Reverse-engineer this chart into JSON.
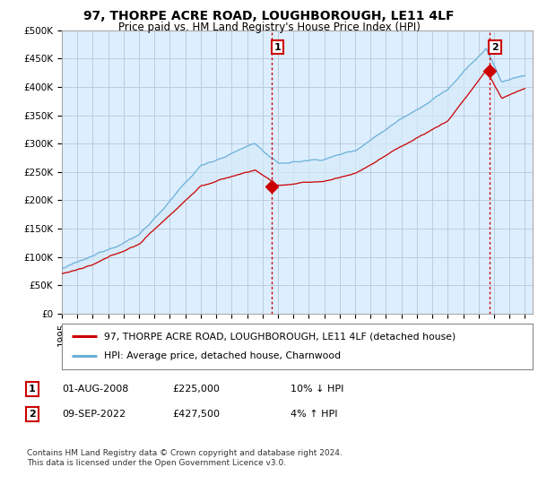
{
  "title": "97, THORPE ACRE ROAD, LOUGHBOROUGH, LE11 4LF",
  "subtitle": "Price paid vs. HM Land Registry's House Price Index (HPI)",
  "ylabel_ticks": [
    "£0",
    "£50K",
    "£100K",
    "£150K",
    "£200K",
    "£250K",
    "£300K",
    "£350K",
    "£400K",
    "£450K",
    "£500K"
  ],
  "ytick_values": [
    0,
    50000,
    100000,
    150000,
    200000,
    250000,
    300000,
    350000,
    400000,
    450000,
    500000
  ],
  "ylim": [
    0,
    500000
  ],
  "xlim_start": 1995.0,
  "xlim_end": 2025.5,
  "hpi_color": "#6ab0d8",
  "hpi_fill_color": "#d6eaf8",
  "price_color": "#cc0000",
  "vline_color": "#cc0000",
  "sale1_x": 2008.583,
  "sale1_y": 225000,
  "sale2_x": 2022.69,
  "sale2_y": 427500,
  "legend_property": "97, THORPE ACRE ROAD, LOUGHBOROUGH, LE11 4LF (detached house)",
  "legend_hpi": "HPI: Average price, detached house, Charnwood",
  "note1_date": "01-AUG-2008",
  "note1_price": "£225,000",
  "note1_hpi": "10% ↓ HPI",
  "note2_date": "09-SEP-2022",
  "note2_price": "£427,500",
  "note2_hpi": "4% ↑ HPI",
  "footer": "Contains HM Land Registry data © Crown copyright and database right 2024.\nThis data is licensed under the Open Government Licence v3.0.",
  "background_color": "#ffffff",
  "chart_bg_color": "#ddeeff",
  "grid_color": "#bbccdd",
  "xtick_years": [
    1995,
    1996,
    1997,
    1998,
    1999,
    2000,
    2001,
    2002,
    2003,
    2004,
    2005,
    2006,
    2007,
    2008,
    2009,
    2010,
    2011,
    2012,
    2013,
    2014,
    2015,
    2016,
    2017,
    2018,
    2019,
    2020,
    2021,
    2022,
    2023,
    2024,
    2025
  ]
}
